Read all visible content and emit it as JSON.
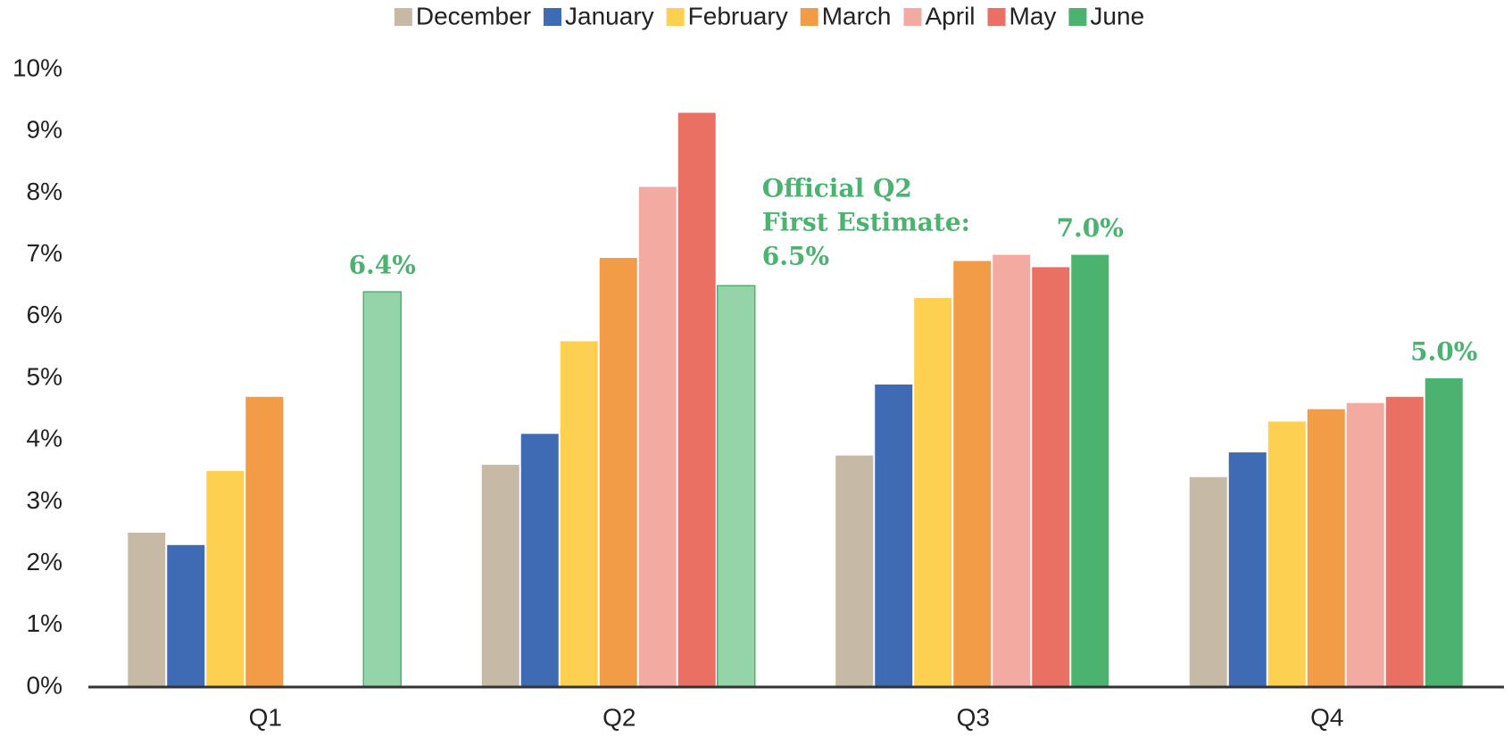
{
  "chart_data": {
    "type": "bar",
    "categories": [
      "Q1",
      "Q2",
      "Q3",
      "Q4"
    ],
    "series": [
      {
        "name": "December",
        "color": "#c6b9a6",
        "values": [
          2.5,
          3.6,
          3.75,
          3.4
        ]
      },
      {
        "name": "January",
        "color": "#3e6bb4",
        "values": [
          2.3,
          4.1,
          4.9,
          3.8
        ]
      },
      {
        "name": "February",
        "color": "#fdd052",
        "values": [
          3.5,
          5.6,
          6.3,
          4.3
        ]
      },
      {
        "name": "March",
        "color": "#f29c48",
        "values": [
          4.7,
          6.95,
          6.9,
          4.5
        ]
      },
      {
        "name": "April",
        "color": "#f3aaa0",
        "values": [
          null,
          8.1,
          7.0,
          4.6
        ]
      },
      {
        "name": "May",
        "color": "#e97062",
        "values": [
          null,
          9.3,
          6.8,
          4.7
        ]
      },
      {
        "name": "June",
        "color": "#4bb36f",
        "colors": [
          "#95d3a8",
          "#95d3a8",
          "#4bb36f",
          "#4bb36f"
        ],
        "values": [
          6.4,
          6.5,
          7.0,
          5.0
        ],
        "value_labels": [
          "6.4%",
          "6.5%",
          "7.0%",
          "5.0%"
        ]
      }
    ],
    "annotations": [
      {
        "text_lines": [
          "Official Q2",
          "First Estimate:"
        ],
        "category": "Q2"
      }
    ],
    "ylim": [
      0,
      10
    ],
    "yticks": [
      {
        "value": 0,
        "label": "0%"
      },
      {
        "value": 1,
        "label": "1%"
      },
      {
        "value": 2,
        "label": "2%"
      },
      {
        "value": 3,
        "label": "3%"
      },
      {
        "value": 4,
        "label": "4%"
      },
      {
        "value": 5,
        "label": "5%"
      },
      {
        "value": 6,
        "label": "6%"
      },
      {
        "value": 7,
        "label": "7%"
      },
      {
        "value": 8,
        "label": "8%"
      },
      {
        "value": 9,
        "label": "9%"
      },
      {
        "value": 10,
        "label": "10%"
      }
    ],
    "legend": "top",
    "grid": false
  }
}
